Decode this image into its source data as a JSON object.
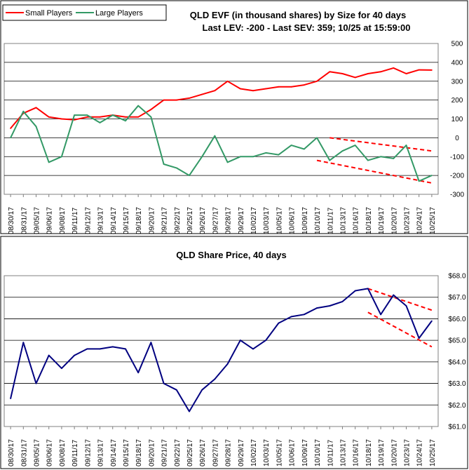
{
  "chart_data": [
    {
      "type": "line",
      "title": "QLD EVF (in thousand shares) by Size for 40 days",
      "subtitle": "Last LEV: -200 - Last SEV: 359; 10/25 at 15:59:00",
      "legend": {
        "placement": "top-left",
        "entries": [
          "Small Players",
          "Large Players"
        ]
      },
      "ylim": [
        -300,
        500
      ],
      "y_ticks": [
        "500",
        "400",
        "300",
        "200",
        "100",
        "0",
        "-100",
        "-200",
        "-300"
      ],
      "y_tick_values": [
        500,
        400,
        300,
        200,
        100,
        0,
        -100,
        -200,
        -300
      ],
      "grid": "horizontal at every 100",
      "categories": [
        "08/30/17",
        "08/31/17",
        "09/05/17",
        "09/06/17",
        "09/08/17",
        "09/11/17",
        "09/12/17",
        "09/13/17",
        "09/14/17",
        "09/15/17",
        "09/18/17",
        "09/20/17",
        "09/21/17",
        "09/22/17",
        "09/25/17",
        "09/26/17",
        "09/27/17",
        "09/28/17",
        "09/29/17",
        "10/02/17",
        "10/03/17",
        "10/05/17",
        "10/06/17",
        "10/09/17",
        "10/10/17",
        "10/11/17",
        "10/13/17",
        "10/16/17",
        "10/18/17",
        "10/19/17",
        "10/20/17",
        "10/23/17",
        "10/24/17",
        "10/25/17"
      ],
      "series": [
        {
          "name": "Small Players",
          "color": "#FF0000",
          "values": [
            50,
            130,
            160,
            110,
            100,
            95,
            110,
            110,
            120,
            110,
            110,
            150,
            200,
            200,
            210,
            230,
            250,
            300,
            260,
            250,
            260,
            270,
            270,
            280,
            300,
            350,
            340,
            320,
            340,
            350,
            370,
            340,
            360,
            359
          ]
        },
        {
          "name": "Large Players",
          "color": "#339966",
          "values": [
            0,
            140,
            60,
            -130,
            -100,
            120,
            120,
            80,
            120,
            90,
            170,
            110,
            -140,
            -160,
            -200,
            -100,
            10,
            -130,
            -100,
            -100,
            -80,
            -90,
            -40,
            -60,
            0,
            -120,
            -70,
            -40,
            -120,
            -100,
            -110,
            -40,
            -230,
            -200
          ]
        }
      ],
      "annotations": {
        "trendline_color": "#FF0000",
        "trendline_style": "dashed",
        "trendlines": [
          {
            "from": [
              "10/11/17",
              0
            ],
            "to": [
              "10/25/17",
              -70
            ]
          },
          {
            "from": [
              "10/10/17",
              -120
            ],
            "to": [
              "10/25/17",
              -240
            ]
          }
        ]
      }
    },
    {
      "type": "line",
      "title": "QLD Share Price, 40 days",
      "ylim": [
        61,
        68
      ],
      "y_ticks": [
        "$68.0",
        "$67.0",
        "$66.0",
        "$65.0",
        "$64.0",
        "$63.0",
        "$62.0",
        "$61.0"
      ],
      "y_tick_values": [
        68,
        67,
        66,
        65,
        64,
        63,
        62,
        61
      ],
      "grid": "horizontal at every 1.0",
      "categories": [
        "08/30/17",
        "08/31/17",
        "09/05/17",
        "09/06/17",
        "09/08/17",
        "09/11/17",
        "09/12/17",
        "09/13/17",
        "09/14/17",
        "09/15/17",
        "09/18/17",
        "09/20/17",
        "09/21/17",
        "09/22/17",
        "09/25/17",
        "09/26/17",
        "09/27/17",
        "09/28/17",
        "09/29/17",
        "10/02/17",
        "10/03/17",
        "10/05/17",
        "10/06/17",
        "10/09/17",
        "10/10/17",
        "10/11/17",
        "10/13/17",
        "10/16/17",
        "10/18/17",
        "10/19/17",
        "10/20/17",
        "10/23/17",
        "10/24/17",
        "10/25/17"
      ],
      "series": [
        {
          "name": "",
          "color": "#000080",
          "values": [
            62.3,
            64.9,
            63.0,
            64.3,
            63.7,
            64.3,
            64.6,
            64.6,
            64.7,
            64.6,
            63.5,
            64.9,
            63.0,
            62.7,
            61.7,
            62.7,
            63.2,
            63.9,
            65.0,
            64.6,
            65.0,
            65.8,
            66.1,
            66.2,
            66.5,
            66.6,
            66.8,
            67.3,
            67.4,
            66.2,
            67.1,
            66.6,
            65.1,
            65.9
          ]
        }
      ],
      "annotations": {
        "trendline_color": "#FF0000",
        "trendline_style": "dashed",
        "trendlines": [
          {
            "from": [
              "10/18/17",
              67.4
            ],
            "to": [
              "10/25/17",
              66.4
            ]
          },
          {
            "from": [
              "10/18/17",
              66.3
            ],
            "to": [
              "10/25/17",
              64.7
            ]
          }
        ]
      }
    }
  ]
}
